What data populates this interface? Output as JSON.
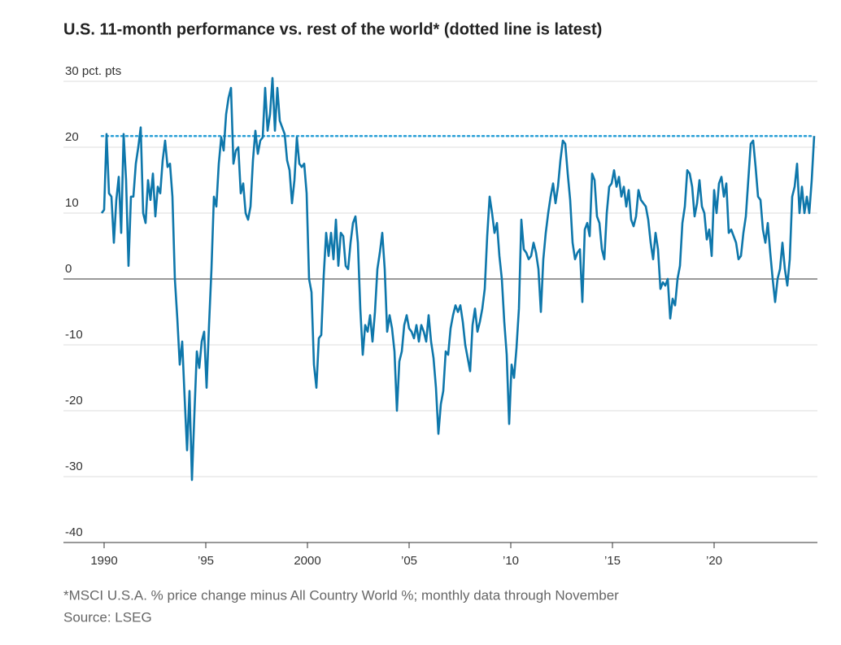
{
  "chart_data": {
    "type": "line",
    "title": "U.S. 11-month performance vs. rest of the world* (dotted line is latest)",
    "footnote": "*MSCI U.S.A. % price change minus All Country World %; monthly data through November",
    "source": "Source: LSEG",
    "color": "#0e77ab",
    "latest_color": "#2a9fd6",
    "latest": 21.7,
    "xlim": [
      1988,
      2025.08
    ],
    "xticks": [
      1990,
      {
        "value": 1995,
        "label": "’95"
      },
      2000,
      {
        "value": 2005,
        "label": "’05"
      },
      {
        "value": 2010,
        "label": "’10"
      },
      {
        "value": 2015,
        "label": "’15"
      },
      {
        "value": 2020,
        "label": "’20"
      }
    ],
    "ylim": [
      -40,
      30
    ],
    "yticks": [
      {
        "value": 30,
        "label": "30 pct. pts"
      },
      20,
      10,
      0,
      -10,
      -20,
      -30,
      -40
    ],
    "grid": true,
    "x": [
      1989.88,
      1990,
      1990.12,
      1990.24,
      1990.36,
      1990.48,
      1990.6,
      1990.72,
      1990.84,
      1990.96,
      1991.08,
      1991.2,
      1991.32,
      1991.44,
      1991.56,
      1991.68,
      1991.8,
      1991.92,
      1992.04,
      1992.16,
      1992.28,
      1992.4,
      1992.52,
      1992.64,
      1992.76,
      1992.88,
      1993,
      1993.12,
      1993.24,
      1993.36,
      1993.48,
      1993.6,
      1993.72,
      1993.84,
      1993.96,
      1994.08,
      1994.2,
      1994.32,
      1994.44,
      1994.56,
      1994.68,
      1994.8,
      1994.92,
      1995.04,
      1995.16,
      1995.28,
      1995.4,
      1995.52,
      1995.64,
      1995.76,
      1995.88,
      1996,
      1996.12,
      1996.24,
      1996.36,
      1996.48,
      1996.6,
      1996.72,
      1996.84,
      1996.96,
      1997.08,
      1997.2,
      1997.32,
      1997.44,
      1997.56,
      1997.68,
      1997.8,
      1997.92,
      1998.04,
      1998.16,
      1998.28,
      1998.4,
      1998.52,
      1998.64,
      1998.76,
      1998.88,
      1999,
      1999.12,
      1999.24,
      1999.36,
      1999.48,
      1999.6,
      1999.72,
      1999.84,
      1999.96,
      2000.08,
      2000.2,
      2000.32,
      2000.44,
      2000.56,
      2000.68,
      2000.8,
      2000.92,
      2001.04,
      2001.16,
      2001.28,
      2001.4,
      2001.52,
      2001.64,
      2001.76,
      2001.88,
      2002,
      2002.12,
      2002.24,
      2002.36,
      2002.48,
      2002.6,
      2002.72,
      2002.84,
      2002.96,
      2003.08,
      2003.2,
      2003.32,
      2003.44,
      2003.56,
      2003.68,
      2003.8,
      2003.92,
      2004.04,
      2004.16,
      2004.28,
      2004.4,
      2004.52,
      2004.64,
      2004.76,
      2004.88,
      2005,
      2005.12,
      2005.24,
      2005.36,
      2005.48,
      2005.6,
      2005.72,
      2005.84,
      2005.96,
      2006.08,
      2006.2,
      2006.32,
      2006.44,
      2006.56,
      2006.68,
      2006.8,
      2006.92,
      2007.04,
      2007.16,
      2007.28,
      2007.4,
      2007.52,
      2007.64,
      2007.76,
      2007.88,
      2008,
      2008.12,
      2008.24,
      2008.36,
      2008.48,
      2008.6,
      2008.72,
      2008.84,
      2008.96,
      2009.08,
      2009.2,
      2009.32,
      2009.44,
      2009.56,
      2009.68,
      2009.8,
      2009.92,
      2010.04,
      2010.16,
      2010.28,
      2010.4,
      2010.52,
      2010.64,
      2010.76,
      2010.88,
      2011,
      2011.12,
      2011.24,
      2011.36,
      2011.48,
      2011.6,
      2011.72,
      2011.84,
      2011.96,
      2012.08,
      2012.2,
      2012.32,
      2012.44,
      2012.56,
      2012.68,
      2012.8,
      2012.92,
      2013.04,
      2013.16,
      2013.28,
      2013.4,
      2013.52,
      2013.64,
      2013.76,
      2013.88,
      2014,
      2014.12,
      2014.24,
      2014.36,
      2014.48,
      2014.6,
      2014.72,
      2014.84,
      2014.96,
      2015.08,
      2015.2,
      2015.32,
      2015.44,
      2015.56,
      2015.68,
      2015.8,
      2015.92,
      2016.04,
      2016.16,
      2016.28,
      2016.4,
      2016.52,
      2016.64,
      2016.76,
      2016.88,
      2017,
      2017.12,
      2017.24,
      2017.36,
      2017.48,
      2017.6,
      2017.72,
      2017.84,
      2017.96,
      2018.08,
      2018.2,
      2018.32,
      2018.44,
      2018.56,
      2018.68,
      2018.8,
      2018.92,
      2019.04,
      2019.16,
      2019.28,
      2019.4,
      2019.52,
      2019.64,
      2019.76,
      2019.88,
      2020,
      2020.12,
      2020.24,
      2020.36,
      2020.48,
      2020.6,
      2020.72,
      2020.84,
      2020.96,
      2021.08,
      2021.2,
      2021.32,
      2021.44,
      2021.56,
      2021.68,
      2021.8,
      2021.92,
      2022.04,
      2022.16,
      2022.28,
      2022.4,
      2022.52,
      2022.64,
      2022.76,
      2022.88,
      2023,
      2023.12,
      2023.24,
      2023.36,
      2023.48,
      2023.6,
      2023.72,
      2023.84,
      2023.96,
      2024.08,
      2024.2,
      2024.32,
      2024.44,
      2024.56,
      2024.68,
      2024.8,
      2024.92
    ],
    "values": [
      10,
      10.5,
      22,
      13,
      12.5,
      5.5,
      12,
      15.5,
      7,
      22,
      15,
      2,
      12.5,
      12.5,
      17.5,
      20,
      23,
      10,
      8.5,
      15,
      12,
      16,
      9.5,
      14,
      13,
      18,
      21,
      17,
      17.5,
      12.5,
      0,
      -6,
      -13,
      -9.5,
      -18,
      -26,
      -17,
      -30.5,
      -20.5,
      -11,
      -13.5,
      -9.5,
      -8,
      -16.5,
      -7,
      1.5,
      12.5,
      11,
      17.5,
      21.5,
      19.5,
      25,
      27.5,
      29,
      17.5,
      19.5,
      20,
      13,
      14.5,
      10,
      9,
      11,
      18,
      22.5,
      19,
      21,
      21.5,
      29,
      22.5,
      25,
      30.5,
      22.5,
      29,
      24,
      23,
      22,
      18,
      16.5,
      11.5,
      15,
      21.5,
      17.5,
      17,
      17.5,
      13,
      0,
      -2,
      -13,
      -16.5,
      -9,
      -8.5,
      0.5,
      7,
      3.5,
      7,
      3,
      9,
      2,
      7,
      6.5,
      2,
      1.5,
      5.5,
      8.5,
      9.5,
      5.5,
      -4.5,
      -11.5,
      -7,
      -8,
      -5.5,
      -9.5,
      -5,
      1.5,
      4,
      7,
      1.5,
      -8,
      -5.5,
      -7.5,
      -11,
      -20,
      -12.5,
      -11,
      -7,
      -5.5,
      -7.5,
      -8,
      -9,
      -7,
      -9.5,
      -7,
      -8,
      -9.5,
      -5.5,
      -9.5,
      -12,
      -16.5,
      -23.5,
      -19,
      -17,
      -11,
      -11.5,
      -7.5,
      -5.5,
      -4,
      -5,
      -4,
      -6.5,
      -10,
      -12,
      -14,
      -7,
      -4.5,
      -8,
      -6.5,
      -4.5,
      -1.5,
      6.5,
      12.5,
      10,
      7,
      8.5,
      3.5,
      0,
      -6.5,
      -11.5,
      -22,
      -13,
      -15,
      -10.5,
      -4.5,
      9,
      4.5,
      4,
      3,
      3.5,
      5.5,
      4,
      1.5,
      -5,
      3,
      7,
      10,
      12.5,
      14.5,
      11.5,
      14,
      18,
      21,
      20.5,
      16,
      12,
      5.5,
      3,
      4,
      4.5,
      -3.5,
      7.5,
      8.5,
      6.5,
      16,
      15,
      9.5,
      8.5,
      4.5,
      3,
      10,
      14,
      14.5,
      16.5,
      14,
      15.5,
      12.5,
      14,
      11,
      13.5,
      9,
      8,
      9.5,
      13.5,
      12,
      11.5,
      11,
      9,
      5.5,
      3,
      7,
      4.5,
      -1.5,
      -0.5,
      -1,
      0,
      -6,
      -3,
      -4,
      0,
      2,
      8.5,
      11,
      16.5,
      16,
      14,
      9.5,
      11.5,
      15,
      11,
      10,
      6,
      7.5,
      3.5,
      13.5,
      10,
      14.5,
      15.5,
      12.5,
      14.5,
      7,
      7.5,
      6.5,
      5.5,
      3,
      3.5,
      7,
      9.5,
      15,
      20.5,
      21,
      17,
      12.5,
      12,
      7.5,
      5.5,
      8.5,
      4,
      0,
      -3.5,
      0,
      1.5,
      5.5,
      1.5,
      -1,
      3,
      12.5,
      14,
      17.5,
      10,
      14,
      10,
      12.5,
      10,
      15,
      21.7
    ]
  }
}
